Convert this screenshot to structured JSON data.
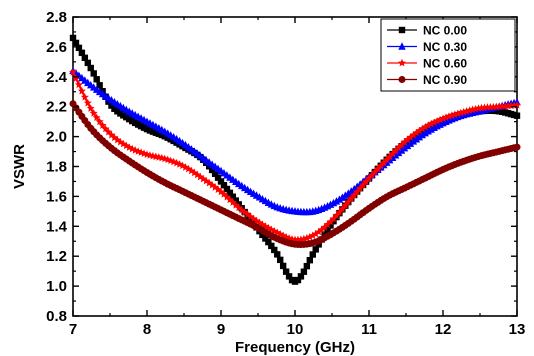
{
  "chart_data": {
    "type": "line",
    "title": "",
    "xlabel": "Frequency (GHz)",
    "ylabel": "VSWR",
    "xlim": [
      7,
      13
    ],
    "ylim": [
      0.8,
      2.8
    ],
    "xticks": [
      "7",
      "8",
      "9",
      "10",
      "11",
      "12",
      "13"
    ],
    "yticks": [
      "0.8",
      "1.0",
      "1.2",
      "1.4",
      "1.6",
      "1.8",
      "2.0",
      "2.2",
      "2.4",
      "2.6",
      "2.8"
    ],
    "grid": false,
    "legend_position": "top-right",
    "series": [
      {
        "name": "NC 0.00",
        "color": "#000000",
        "marker": "square",
        "points": [
          [
            7.0,
            2.66
          ],
          [
            7.25,
            2.45
          ],
          [
            7.5,
            2.22
          ],
          [
            7.75,
            2.12
          ],
          [
            8.0,
            2.05
          ],
          [
            8.25,
            2.0
          ],
          [
            8.5,
            1.93
          ],
          [
            8.75,
            1.85
          ],
          [
            9.0,
            1.7
          ],
          [
            9.25,
            1.54
          ],
          [
            9.5,
            1.38
          ],
          [
            9.75,
            1.22
          ],
          [
            9.9,
            1.08
          ],
          [
            10.0,
            1.03
          ],
          [
            10.1,
            1.08
          ],
          [
            10.25,
            1.22
          ],
          [
            10.5,
            1.42
          ],
          [
            10.75,
            1.58
          ],
          [
            11.0,
            1.72
          ],
          [
            11.25,
            1.85
          ],
          [
            11.5,
            1.96
          ],
          [
            11.75,
            2.05
          ],
          [
            12.0,
            2.11
          ],
          [
            12.25,
            2.15
          ],
          [
            12.5,
            2.17
          ],
          [
            12.75,
            2.17
          ],
          [
            13.0,
            2.14
          ]
        ]
      },
      {
        "name": "NC 0.30",
        "color": "#0000ff",
        "marker": "triangle",
        "points": [
          [
            7.0,
            2.44
          ],
          [
            7.25,
            2.34
          ],
          [
            7.5,
            2.25
          ],
          [
            7.75,
            2.17
          ],
          [
            8.0,
            2.1
          ],
          [
            8.25,
            2.03
          ],
          [
            8.5,
            1.95
          ],
          [
            8.75,
            1.86
          ],
          [
            9.0,
            1.77
          ],
          [
            9.25,
            1.68
          ],
          [
            9.5,
            1.6
          ],
          [
            9.75,
            1.53
          ],
          [
            10.0,
            1.5
          ],
          [
            10.25,
            1.5
          ],
          [
            10.5,
            1.55
          ],
          [
            10.75,
            1.63
          ],
          [
            11.0,
            1.73
          ],
          [
            11.25,
            1.83
          ],
          [
            11.5,
            1.93
          ],
          [
            11.75,
            2.02
          ],
          [
            12.0,
            2.09
          ],
          [
            12.25,
            2.14
          ],
          [
            12.5,
            2.17
          ],
          [
            12.75,
            2.2
          ],
          [
            13.0,
            2.23
          ]
        ]
      },
      {
        "name": "NC 0.60",
        "color": "#ff0000",
        "marker": "star",
        "points": [
          [
            7.0,
            2.43
          ],
          [
            7.25,
            2.18
          ],
          [
            7.5,
            2.02
          ],
          [
            7.75,
            1.93
          ],
          [
            8.0,
            1.88
          ],
          [
            8.25,
            1.85
          ],
          [
            8.5,
            1.8
          ],
          [
            8.75,
            1.72
          ],
          [
            9.0,
            1.63
          ],
          [
            9.25,
            1.52
          ],
          [
            9.5,
            1.43
          ],
          [
            9.75,
            1.36
          ],
          [
            10.0,
            1.31
          ],
          [
            10.25,
            1.34
          ],
          [
            10.5,
            1.44
          ],
          [
            10.75,
            1.58
          ],
          [
            11.0,
            1.72
          ],
          [
            11.25,
            1.85
          ],
          [
            11.5,
            1.97
          ],
          [
            11.75,
            2.06
          ],
          [
            12.0,
            2.12
          ],
          [
            12.25,
            2.16
          ],
          [
            12.5,
            2.19
          ],
          [
            12.75,
            2.2
          ],
          [
            13.0,
            2.21
          ]
        ]
      },
      {
        "name": "NC 0.90",
        "color": "#800000",
        "marker": "circle",
        "points": [
          [
            7.0,
            2.22
          ],
          [
            7.25,
            2.05
          ],
          [
            7.5,
            1.93
          ],
          [
            7.75,
            1.84
          ],
          [
            8.0,
            1.76
          ],
          [
            8.25,
            1.69
          ],
          [
            8.5,
            1.63
          ],
          [
            8.75,
            1.57
          ],
          [
            9.0,
            1.51
          ],
          [
            9.25,
            1.45
          ],
          [
            9.5,
            1.39
          ],
          [
            9.75,
            1.32
          ],
          [
            10.0,
            1.28
          ],
          [
            10.25,
            1.29
          ],
          [
            10.5,
            1.35
          ],
          [
            10.75,
            1.43
          ],
          [
            11.0,
            1.52
          ],
          [
            11.25,
            1.6
          ],
          [
            11.5,
            1.66
          ],
          [
            11.75,
            1.72
          ],
          [
            12.0,
            1.78
          ],
          [
            12.25,
            1.83
          ],
          [
            12.5,
            1.87
          ],
          [
            12.75,
            1.9
          ],
          [
            13.0,
            1.93
          ]
        ]
      }
    ]
  }
}
